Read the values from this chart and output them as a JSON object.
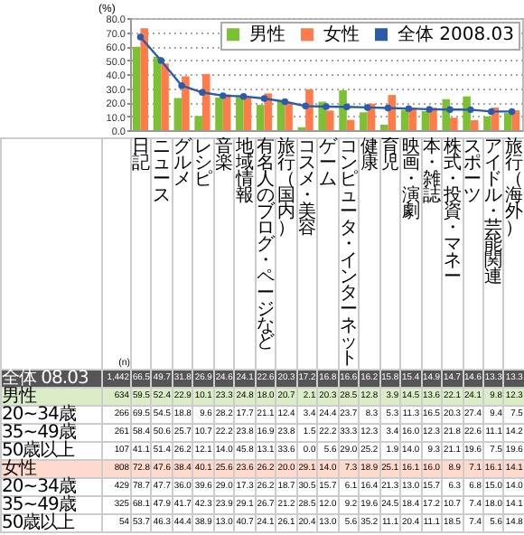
{
  "chart_data": {
    "type": "bar",
    "ylabel": "(%)",
    "categories": [
      "日記",
      "ニュース",
      "グルメ",
      "レシピ",
      "音楽",
      "地域情報",
      "有名人のブログ・ページなど",
      "旅行（国内）",
      "コスメ・美容",
      "ゲーム",
      "コンピュータ・インターネット",
      "健康",
      "育児",
      "映画・演劇",
      "本・雑誌",
      "株式・投資・マネー",
      "スポーツ",
      "アイドル・芸能関連",
      "旅行（海外）"
    ],
    "series": [
      {
        "name": "全体 2008.03",
        "type": "line",
        "color": "#2a5caa",
        "values": [
          66.5,
          49.7,
          31.8,
          26.9,
          24.6,
          24.1,
          22.6,
          20.3,
          17.2,
          16.8,
          16.6,
          16.2,
          15.8,
          15.4,
          14.9,
          14.7,
          14.6,
          13.3,
          13.3
        ]
      },
      {
        "name": "男性",
        "color": "#7cc033",
        "values": [
          59.5,
          52.4,
          22.9,
          10.1,
          23.3,
          24.8,
          18.0,
          20.7,
          2.1,
          20.3,
          28.5,
          12.8,
          3.9,
          14.5,
          13.6,
          22.1,
          24.1,
          9.8,
          12.3
        ]
      },
      {
        "name": "女性",
        "color": "#ff7b4a",
        "values": [
          72.8,
          47.6,
          38.4,
          40.1,
          25.6,
          23.6,
          26.2,
          20.0,
          29.1,
          14.0,
          7.3,
          18.9,
          25.1,
          16.1,
          16.0,
          8.9,
          7.1,
          16.1,
          14.1
        ]
      }
    ],
    "ylim": [
      0,
      80
    ],
    "yticks": [
      {
        "value": 0,
        "label": "0.0"
      },
      {
        "value": 10,
        "label": "10.0"
      },
      {
        "value": 20,
        "label": "20.0"
      },
      {
        "value": 30,
        "label": "30.0"
      },
      {
        "value": 40,
        "label": "40.0"
      },
      {
        "value": 50,
        "label": "50.0"
      },
      {
        "value": 60,
        "label": "60.0"
      },
      {
        "value": 70,
        "label": "70.0"
      },
      {
        "value": 80,
        "label": "80.0"
      }
    ],
    "grid": "y",
    "legend": "top right",
    "marker": "circle",
    "line_style": "solid",
    "tick_labels": "y",
    "annotations": [
      "(n)",
      "全体 08.03",
      "1,442",
      "66.5",
      "49.7",
      "31.8",
      "26.9",
      "24.6",
      "24.1",
      "22.6",
      "20.3",
      "17.2",
      "16.8",
      "16.6",
      "16.2",
      "15.8",
      "15.4",
      "14.9",
      "14.7",
      "14.6",
      "13.3",
      "13.3",
      "男性",
      "634",
      "59.5",
      "52.4",
      "22.9",
      "10.1",
      "23.3",
      "24.8",
      "18.0",
      "20.7",
      "2.1",
      "20.3",
      "28.5",
      "12.8",
      "3.9",
      "14.5",
      "13.6",
      "22.1",
      "24.1",
      "9.8",
      "12.3",
      "20~34歳",
      "266",
      "69.5",
      "54.5",
      "18.8",
      "9.6",
      "28.2",
      "17.7",
      "21.1",
      "12.4",
      "3.4",
      "24.4",
      "23.7",
      "8.3",
      "5.3",
      "11.3",
      "16.5",
      "20.3",
      "27.4",
      "9.4",
      "7.5",
      "35~49歳",
      "261",
      "58.4",
      "50.6",
      "25.7",
      "10.7",
      "22.2",
      "23.8",
      "16.9",
      "23.8",
      "1.5",
      "22.2",
      "33.3",
      "12.3",
      "3.4",
      "16.0",
      "12.3",
      "21.8",
      "22.6",
      "11.1",
      "14.2",
      "50歳以上",
      "107",
      "41.1",
      "51.4",
      "26.2",
      "12.1",
      "14.0",
      "45.8",
      "13.1",
      "33.6",
      "0.0",
      "5.6",
      "29.0",
      "25.2",
      "1.9",
      "14.0",
      "9.3",
      "21.1",
      "19.6",
      "7.5",
      "19.6",
      "女性",
      "808",
      "72.8",
      "47.6",
      "38.4",
      "40.1",
      "25.6",
      "23.6",
      "26.2",
      "20.0",
      "29.1",
      "14.0",
      "7.3",
      "18.9",
      "25.1",
      "16.1",
      "16.0",
      "8.9",
      "7.1",
      "16.1",
      "14.1",
      "20~34歳",
      "429",
      "78.7",
      "47.7",
      "36.0",
      "39.6",
      "29.0",
      "17.3",
      "26.2",
      "18.7",
      "30.5",
      "15.7",
      "6.1",
      "16.4",
      "21.3",
      "13.0",
      "15.7",
      "6.3",
      "6.8",
      "15.0",
      "14.0",
      "35~49歳",
      "325",
      "68.1",
      "47.9",
      "41.7",
      "42.3",
      "23.9",
      "29.1",
      "26.7",
      "21.2",
      "28.5",
      "12.0",
      "9.2",
      "19.6",
      "24.5",
      "18.4",
      "17.2",
      "10.7",
      "7.4",
      "18.0",
      "14.1",
      "50歳以上",
      "54",
      "53.7",
      "46.3",
      "44.4",
      "38.9",
      "13.0",
      "40.7",
      "24.1",
      "26.1",
      "20.4",
      "13.0",
      "5.6",
      "35.2",
      "11.1",
      "20.4",
      "11.1",
      "18.5",
      "7.4",
      "5.6",
      "14.8"
    ]
  }
}
